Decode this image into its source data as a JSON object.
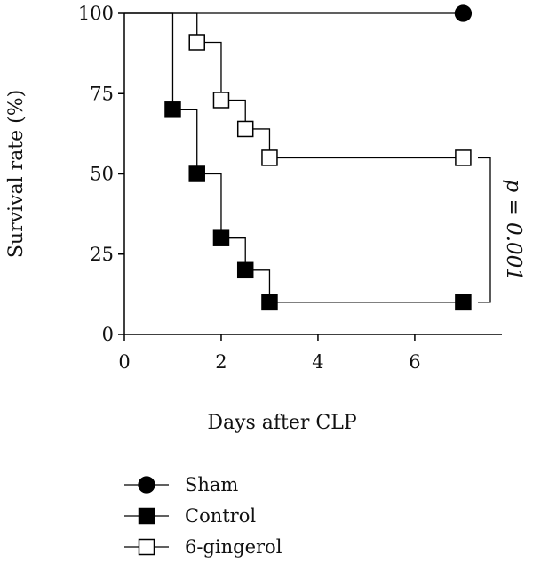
{
  "chart_data": {
    "type": "line",
    "subtype": "kaplan-meier step survival curve",
    "xlabel": "Days after CLP",
    "ylabel": "Survival rate (%)",
    "xlim": [
      0,
      7.8
    ],
    "ylim": [
      0,
      100
    ],
    "x_ticks": [
      0,
      2,
      4,
      6
    ],
    "x_tick_labels": [
      "0",
      "2",
      "4",
      "6"
    ],
    "y_ticks": [
      0,
      25,
      50,
      75,
      100
    ],
    "y_tick_labels": [
      "0",
      "25",
      "50",
      "75",
      "100"
    ],
    "grid": false,
    "legend_position": "bottom-left",
    "series": [
      {
        "name": "Sham",
        "marker": "filled-circle",
        "color": "#000000",
        "x": [
          0,
          7
        ],
        "y": [
          100,
          100
        ],
        "marker_x": [
          7
        ],
        "marker_y": [
          100
        ]
      },
      {
        "name": "Control",
        "marker": "filled-square",
        "color": "#000000",
        "x": [
          0,
          1,
          1.5,
          2,
          2.5,
          3,
          7
        ],
        "y": [
          100,
          70,
          50,
          30,
          20,
          10,
          10
        ],
        "marker_x": [
          1,
          1.5,
          2,
          2.5,
          3,
          7
        ],
        "marker_y": [
          70,
          50,
          30,
          20,
          10,
          10
        ]
      },
      {
        "name": "6-gingerol",
        "marker": "open-square",
        "color": "#000000",
        "x": [
          0,
          1.5,
          2,
          2.5,
          3,
          7
        ],
        "y": [
          100,
          91,
          73,
          64,
          55,
          55
        ],
        "marker_x": [
          1.5,
          2,
          2.5,
          3,
          7
        ],
        "marker_y": [
          91,
          73,
          64,
          55,
          55
        ]
      }
    ],
    "annotation": {
      "text": "p = 0.001",
      "between": [
        "6-gingerol",
        "Control"
      ],
      "at_x": 7
    }
  }
}
